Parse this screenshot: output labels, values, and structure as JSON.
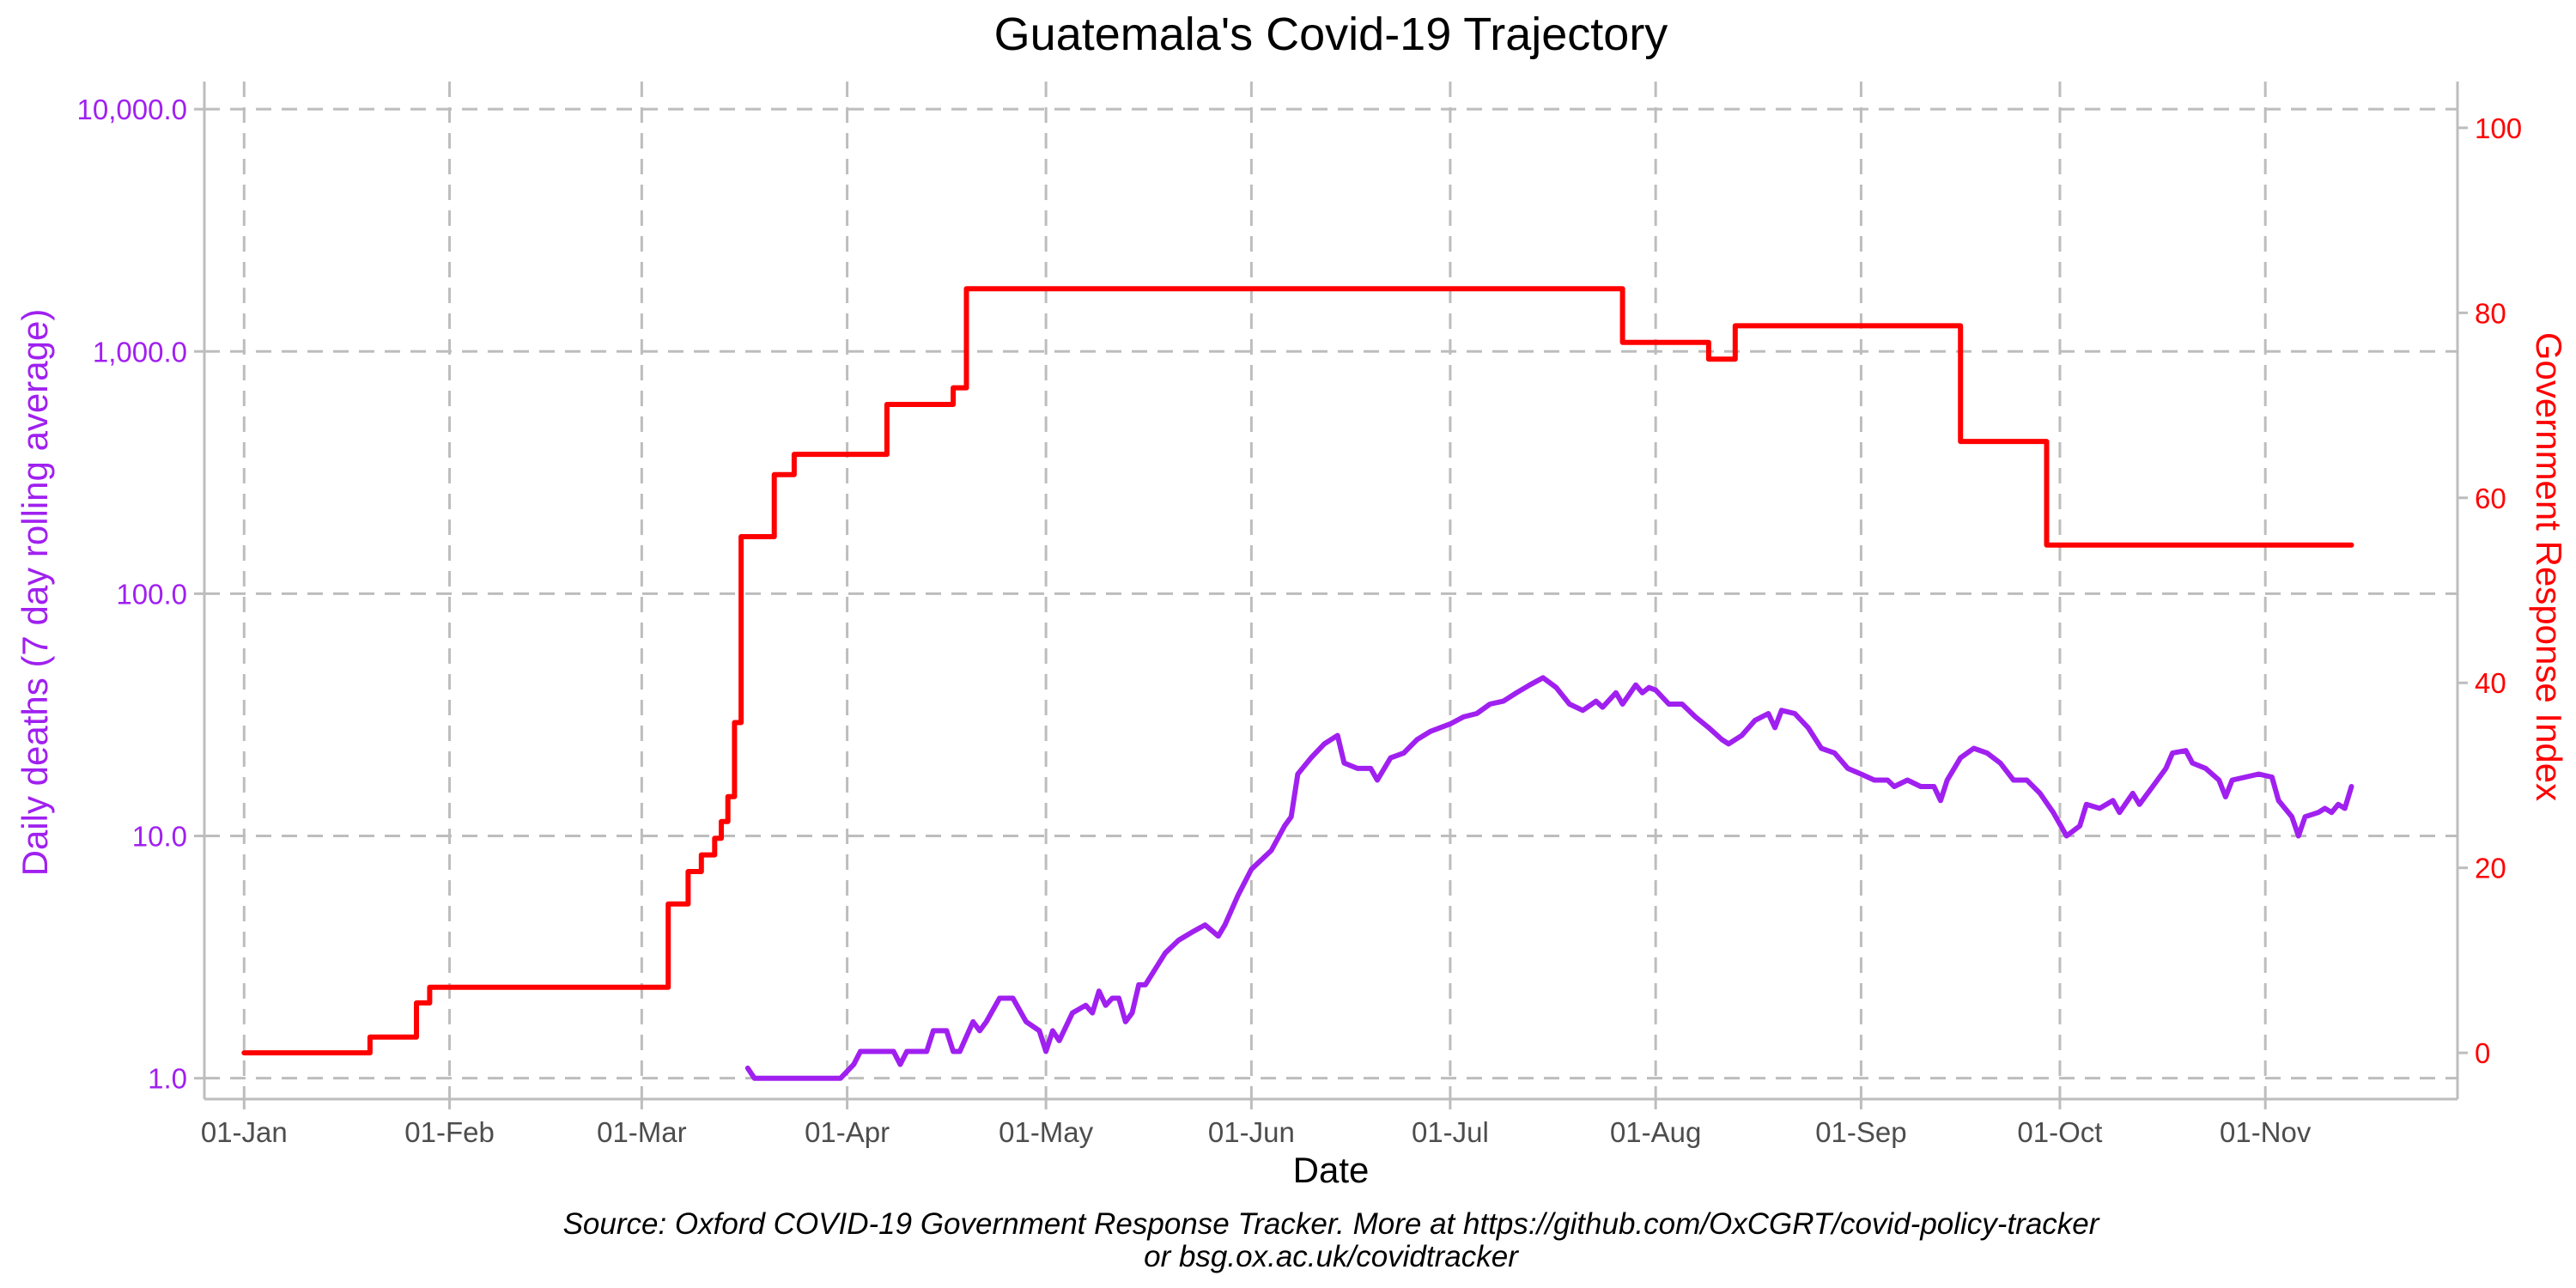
{
  "chart_data": {
    "type": "line",
    "title": "Guatemala's Covid-19 Trajectory",
    "xlabel": "Date",
    "ylabel_left": "Daily deaths (7 day rolling average)",
    "ylabel_right": "Government Response Index",
    "caption_line1": "Source: Oxford COVID-19 Government Response Tracker. More at https://github.com/OxCGRT/covid-policy-tracker",
    "caption_line2": "or bsg.ox.ac.uk/covidtracker",
    "x_range": [
      "2019-12-26",
      "2020-11-30"
    ],
    "x_ticks": [
      {
        "date": "2020-01-01",
        "label": "01-Jan"
      },
      {
        "date": "2020-02-01",
        "label": "01-Feb"
      },
      {
        "date": "2020-03-01",
        "label": "01-Mar"
      },
      {
        "date": "2020-04-01",
        "label": "01-Apr"
      },
      {
        "date": "2020-05-01",
        "label": "01-May"
      },
      {
        "date": "2020-06-01",
        "label": "01-Jun"
      },
      {
        "date": "2020-07-01",
        "label": "01-Jul"
      },
      {
        "date": "2020-08-01",
        "label": "01-Aug"
      },
      {
        "date": "2020-09-01",
        "label": "01-Sep"
      },
      {
        "date": "2020-10-01",
        "label": "01-Oct"
      },
      {
        "date": "2020-11-01",
        "label": "01-Nov"
      }
    ],
    "y_left": {
      "scale": "log10",
      "range": [
        0.82,
        13000
      ],
      "ticks": [
        {
          "value": 1,
          "label": "1.0"
        },
        {
          "value": 10,
          "label": "10.0"
        },
        {
          "value": 100,
          "label": "100.0"
        },
        {
          "value": 1000,
          "label": "1,000.0"
        },
        {
          "value": 10000,
          "label": "10,000.0"
        }
      ]
    },
    "y_right": {
      "scale": "linear",
      "range": [
        -5,
        105
      ],
      "ticks": [
        {
          "value": 0,
          "label": "0"
        },
        {
          "value": 20,
          "label": "20"
        },
        {
          "value": 40,
          "label": "40"
        },
        {
          "value": 60,
          "label": "60"
        },
        {
          "value": 80,
          "label": "80"
        },
        {
          "value": 100,
          "label": "100"
        }
      ]
    },
    "grid": true,
    "colors": {
      "deaths": "#a020f0",
      "response": "#ff0000",
      "grid": "#bdbdbd"
    },
    "series": [
      {
        "axis": "right",
        "step": true,
        "points": [
          [
            "2020-01-01",
            0
          ],
          [
            "2020-01-20",
            1.7
          ],
          [
            "2020-01-27",
            5.4
          ],
          [
            "2020-01-29",
            7.1
          ],
          [
            "2020-03-05",
            16.1
          ],
          [
            "2020-03-08",
            19.6
          ],
          [
            "2020-03-10",
            21.4
          ],
          [
            "2020-03-12",
            23.2
          ],
          [
            "2020-03-13",
            25.0
          ],
          [
            "2020-03-14",
            27.7
          ],
          [
            "2020-03-15",
            35.7
          ],
          [
            "2020-03-16",
            55.8
          ],
          [
            "2020-03-21",
            62.5
          ],
          [
            "2020-03-24",
            64.7
          ],
          [
            "2020-04-07",
            70.1
          ],
          [
            "2020-04-17",
            71.9
          ],
          [
            "2020-04-19",
            82.6
          ],
          [
            "2020-07-27",
            76.8
          ],
          [
            "2020-08-09",
            75.0
          ],
          [
            "2020-08-13",
            78.6
          ],
          [
            "2020-09-16",
            66.1
          ],
          [
            "2020-09-29",
            54.9
          ],
          [
            "2020-11-14",
            54.9
          ]
        ]
      },
      {
        "axis": "left",
        "points": [
          [
            "2020-03-17",
            1.1
          ],
          [
            "2020-03-18",
            1.0
          ],
          [
            "2020-03-25",
            1.0
          ],
          [
            "2020-03-31",
            1.0
          ],
          [
            "2020-04-02",
            1.14
          ],
          [
            "2020-04-03",
            1.29
          ],
          [
            "2020-04-07",
            1.29
          ],
          [
            "2020-04-08",
            1.29
          ],
          [
            "2020-04-09",
            1.14
          ],
          [
            "2020-04-10",
            1.29
          ],
          [
            "2020-04-13",
            1.29
          ],
          [
            "2020-04-14",
            1.57
          ],
          [
            "2020-04-16",
            1.57
          ],
          [
            "2020-04-17",
            1.29
          ],
          [
            "2020-04-18",
            1.29
          ],
          [
            "2020-04-20",
            1.71
          ],
          [
            "2020-04-21",
            1.57
          ],
          [
            "2020-04-22",
            1.71
          ],
          [
            "2020-04-24",
            2.14
          ],
          [
            "2020-04-26",
            2.14
          ],
          [
            "2020-04-28",
            1.71
          ],
          [
            "2020-04-30",
            1.57
          ],
          [
            "2020-05-01",
            1.29
          ],
          [
            "2020-05-02",
            1.57
          ],
          [
            "2020-05-03",
            1.43
          ],
          [
            "2020-05-05",
            1.86
          ],
          [
            "2020-05-07",
            2.0
          ],
          [
            "2020-05-08",
            1.86
          ],
          [
            "2020-05-09",
            2.29
          ],
          [
            "2020-05-10",
            2.0
          ],
          [
            "2020-05-11",
            2.14
          ],
          [
            "2020-05-12",
            2.14
          ],
          [
            "2020-05-13",
            1.71
          ],
          [
            "2020-05-14",
            1.86
          ],
          [
            "2020-05-15",
            2.43
          ],
          [
            "2020-05-16",
            2.43
          ],
          [
            "2020-05-19",
            3.29
          ],
          [
            "2020-05-21",
            3.71
          ],
          [
            "2020-05-23",
            4.0
          ],
          [
            "2020-05-25",
            4.29
          ],
          [
            "2020-05-27",
            3.86
          ],
          [
            "2020-05-28",
            4.29
          ],
          [
            "2020-05-30",
            5.71
          ],
          [
            "2020-06-01",
            7.29
          ],
          [
            "2020-06-04",
            8.71
          ],
          [
            "2020-06-06",
            11.0
          ],
          [
            "2020-06-07",
            12.0
          ],
          [
            "2020-06-08",
            18.0
          ],
          [
            "2020-06-10",
            21.0
          ],
          [
            "2020-06-12",
            24.0
          ],
          [
            "2020-06-14",
            26.0
          ],
          [
            "2020-06-15",
            20.0
          ],
          [
            "2020-06-17",
            19.0
          ],
          [
            "2020-06-19",
            19.0
          ],
          [
            "2020-06-20",
            17.0
          ],
          [
            "2020-06-22",
            21.0
          ],
          [
            "2020-06-24",
            22.0
          ],
          [
            "2020-06-26",
            25.0
          ],
          [
            "2020-06-28",
            27.0
          ],
          [
            "2020-07-01",
            29.0
          ],
          [
            "2020-07-03",
            31.0
          ],
          [
            "2020-07-05",
            32.0
          ],
          [
            "2020-07-07",
            35.0
          ],
          [
            "2020-07-09",
            36.0
          ],
          [
            "2020-07-11",
            39.0
          ],
          [
            "2020-07-13",
            42.0
          ],
          [
            "2020-07-15",
            45.0
          ],
          [
            "2020-07-17",
            41.0
          ],
          [
            "2020-07-19",
            35.0
          ],
          [
            "2020-07-21",
            33.0
          ],
          [
            "2020-07-23",
            36.0
          ],
          [
            "2020-07-24",
            34.0
          ],
          [
            "2020-07-26",
            39.0
          ],
          [
            "2020-07-27",
            35.0
          ],
          [
            "2020-07-29",
            42.0
          ],
          [
            "2020-07-30",
            39.0
          ],
          [
            "2020-07-31",
            41.0
          ],
          [
            "2020-08-01",
            40.0
          ],
          [
            "2020-08-03",
            35.0
          ],
          [
            "2020-08-05",
            35.0
          ],
          [
            "2020-08-07",
            31.0
          ],
          [
            "2020-08-09",
            28.0
          ],
          [
            "2020-08-11",
            25.0
          ],
          [
            "2020-08-12",
            24.0
          ],
          [
            "2020-08-14",
            26.0
          ],
          [
            "2020-08-16",
            30.0
          ],
          [
            "2020-08-18",
            32.0
          ],
          [
            "2020-08-19",
            28.0
          ],
          [
            "2020-08-20",
            33.0
          ],
          [
            "2020-08-22",
            32.0
          ],
          [
            "2020-08-24",
            28.0
          ],
          [
            "2020-08-26",
            23.0
          ],
          [
            "2020-08-28",
            22.0
          ],
          [
            "2020-08-30",
            19.0
          ],
          [
            "2020-09-01",
            18.0
          ],
          [
            "2020-09-03",
            17.0
          ],
          [
            "2020-09-05",
            17.0
          ],
          [
            "2020-09-06",
            16.0
          ],
          [
            "2020-09-08",
            17.0
          ],
          [
            "2020-09-10",
            16.0
          ],
          [
            "2020-09-12",
            16.0
          ],
          [
            "2020-09-13",
            14.0
          ],
          [
            "2020-09-14",
            17.0
          ],
          [
            "2020-09-16",
            21.0
          ],
          [
            "2020-09-18",
            23.0
          ],
          [
            "2020-09-20",
            22.0
          ],
          [
            "2020-09-22",
            20.0
          ],
          [
            "2020-09-24",
            17.0
          ],
          [
            "2020-09-26",
            17.0
          ],
          [
            "2020-09-28",
            15.0
          ],
          [
            "2020-09-30",
            12.5
          ],
          [
            "2020-10-02",
            10.0
          ],
          [
            "2020-10-04",
            11.0
          ],
          [
            "2020-10-05",
            13.5
          ],
          [
            "2020-10-07",
            13.0
          ],
          [
            "2020-10-09",
            14.0
          ],
          [
            "2020-10-10",
            12.5
          ],
          [
            "2020-10-12",
            15.0
          ],
          [
            "2020-10-13",
            13.5
          ],
          [
            "2020-10-15",
            16.0
          ],
          [
            "2020-10-17",
            19.0
          ],
          [
            "2020-10-18",
            22.0
          ],
          [
            "2020-10-20",
            22.5
          ],
          [
            "2020-10-21",
            20.0
          ],
          [
            "2020-10-23",
            19.0
          ],
          [
            "2020-10-25",
            17.0
          ],
          [
            "2020-10-26",
            14.5
          ],
          [
            "2020-10-27",
            17.0
          ],
          [
            "2020-10-29",
            17.5
          ],
          [
            "2020-10-31",
            18.0
          ],
          [
            "2020-11-02",
            17.5
          ],
          [
            "2020-11-03",
            14.0
          ],
          [
            "2020-11-05",
            12.0
          ],
          [
            "2020-11-06",
            10.0
          ],
          [
            "2020-11-07",
            12.0
          ],
          [
            "2020-11-09",
            12.5
          ],
          [
            "2020-11-10",
            13.0
          ],
          [
            "2020-11-11",
            12.5
          ],
          [
            "2020-11-12",
            13.5
          ],
          [
            "2020-11-13",
            13.0
          ],
          [
            "2020-11-14",
            16.0
          ]
        ]
      }
    ]
  }
}
